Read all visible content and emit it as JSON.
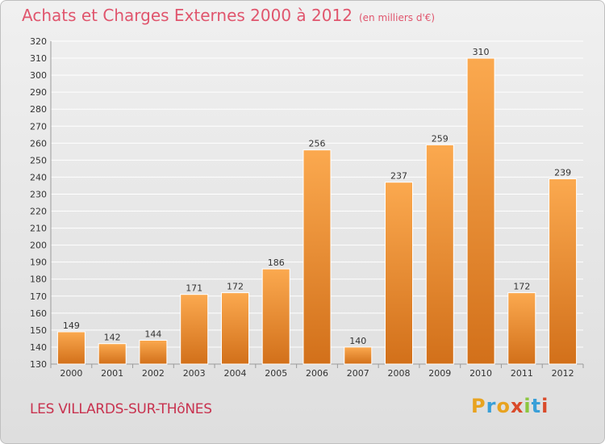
{
  "header": {
    "title": "Achats et Charges Externes 2000 à 2012",
    "unit": "(en milliers d'€)"
  },
  "footer": {
    "location": "LES VILLARDS-SUR-THôNES",
    "brand": "Proxiti",
    "brand_colors": [
      "#e8a320",
      "#3a9fd8",
      "#e8a320",
      "#d94a2a",
      "#8cc63f",
      "#3a9fd8",
      "#d94a2a"
    ]
  },
  "colors": {
    "bar_top": "#fba94f",
    "bar_bottom": "#d2701a",
    "title": "#e0556d",
    "location": "#c8324f",
    "grid": "#ffffff"
  },
  "chart_data": {
    "type": "bar",
    "title": "Achats et Charges Externes 2000 à 2012",
    "subtitle": "(en milliers d'€)",
    "xlabel": "",
    "ylabel": "",
    "categories": [
      "2000",
      "2001",
      "2002",
      "2003",
      "2004",
      "2005",
      "2006",
      "2007",
      "2008",
      "2009",
      "2010",
      "2011",
      "2012"
    ],
    "values": [
      149,
      142,
      144,
      171,
      172,
      186,
      256,
      140,
      237,
      259,
      310,
      172,
      239
    ],
    "ylim": [
      130,
      320
    ],
    "ytick_step": 10,
    "grid": true,
    "data_labels": true
  }
}
